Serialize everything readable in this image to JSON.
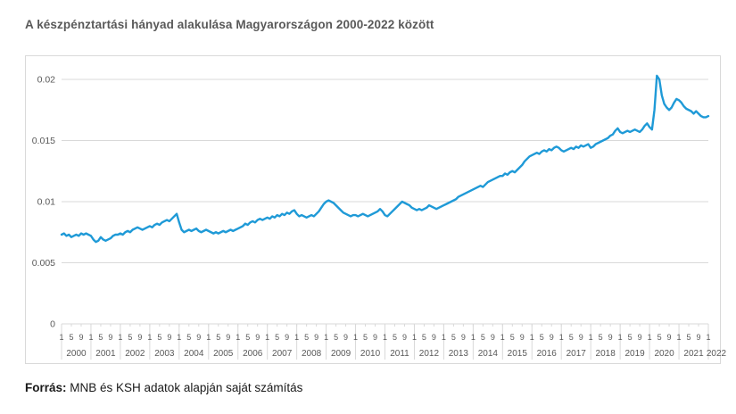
{
  "page": {
    "title": "A készpénztartási hányad alakulása Magyarországon 2000-2022 között",
    "source_label": "Forrás:",
    "source_text": " MNB és KSH adatok alapján saját számítás"
  },
  "colors": {
    "line": "#1f9ad7",
    "grid": "#d9d9d9",
    "axis_text": "#595959",
    "title_text": "#595959",
    "box_border": "#d9d9d9"
  },
  "chart_data": {
    "type": "line",
    "title": "A készpénztartási hányad alakulása Magyarországon 2000-2022 között",
    "frequency": "monthly",
    "x_start": "2000-01",
    "x_end": "2022-01",
    "years": [
      2000,
      2001,
      2002,
      2003,
      2004,
      2005,
      2006,
      2007,
      2008,
      2009,
      2010,
      2011,
      2012,
      2013,
      2014,
      2015,
      2016,
      2017,
      2018,
      2019,
      2020,
      2021,
      2022
    ],
    "month_tick_labels": [
      "1",
      "5",
      "9"
    ],
    "y_ticks": [
      0,
      0.005,
      0.01,
      0.015,
      0.02
    ],
    "y_tick_labels": [
      "0",
      "0.005",
      "0.01",
      "0.015",
      "0.02"
    ],
    "ylim": [
      0,
      0.021
    ],
    "grid": "horizontal",
    "legend": "none",
    "series": [
      {
        "name": "készpénztartási hányad",
        "values": [
          0.0073,
          0.0074,
          0.0072,
          0.0073,
          0.0071,
          0.0072,
          0.0073,
          0.0072,
          0.0074,
          0.0073,
          0.0074,
          0.0073,
          0.0072,
          0.0069,
          0.0067,
          0.0068,
          0.0071,
          0.0069,
          0.0068,
          0.0069,
          0.007,
          0.0072,
          0.0073,
          0.0073,
          0.0074,
          0.0073,
          0.0075,
          0.0076,
          0.0075,
          0.0077,
          0.0078,
          0.0079,
          0.0078,
          0.0077,
          0.0078,
          0.0079,
          0.008,
          0.0079,
          0.0081,
          0.0082,
          0.0081,
          0.0083,
          0.0084,
          0.0085,
          0.0084,
          0.0086,
          0.0088,
          0.009,
          0.0083,
          0.0077,
          0.0075,
          0.0076,
          0.0077,
          0.0076,
          0.0077,
          0.0078,
          0.0076,
          0.0075,
          0.0076,
          0.0077,
          0.0076,
          0.0075,
          0.0074,
          0.0075,
          0.0074,
          0.0075,
          0.0076,
          0.0075,
          0.0076,
          0.0077,
          0.0076,
          0.0077,
          0.0078,
          0.0079,
          0.008,
          0.0082,
          0.0081,
          0.0083,
          0.0084,
          0.0083,
          0.0085,
          0.0086,
          0.0085,
          0.0086,
          0.0087,
          0.0086,
          0.0088,
          0.0087,
          0.0089,
          0.0088,
          0.009,
          0.0089,
          0.0091,
          0.009,
          0.0092,
          0.0093,
          0.009,
          0.0088,
          0.0089,
          0.0088,
          0.0087,
          0.0088,
          0.0089,
          0.0088,
          0.009,
          0.0092,
          0.0095,
          0.0098,
          0.01,
          0.0101,
          0.01,
          0.0099,
          0.0097,
          0.0095,
          0.0093,
          0.0091,
          0.009,
          0.0089,
          0.0088,
          0.0089,
          0.0089,
          0.0088,
          0.0089,
          0.009,
          0.0089,
          0.0088,
          0.0089,
          0.009,
          0.0091,
          0.0092,
          0.0094,
          0.0092,
          0.0089,
          0.0088,
          0.009,
          0.0092,
          0.0094,
          0.0096,
          0.0098,
          0.01,
          0.0099,
          0.0098,
          0.0097,
          0.0095,
          0.0094,
          0.0093,
          0.0094,
          0.0093,
          0.0094,
          0.0095,
          0.0097,
          0.0096,
          0.0095,
          0.0094,
          0.0095,
          0.0096,
          0.0097,
          0.0098,
          0.0099,
          0.01,
          0.0101,
          0.0102,
          0.0104,
          0.0105,
          0.0106,
          0.0107,
          0.0108,
          0.0109,
          0.011,
          0.0111,
          0.0112,
          0.0113,
          0.0112,
          0.0114,
          0.0116,
          0.0117,
          0.0118,
          0.0119,
          0.012,
          0.0121,
          0.0121,
          0.0123,
          0.0122,
          0.0124,
          0.0125,
          0.0124,
          0.0126,
          0.0128,
          0.013,
          0.0133,
          0.0135,
          0.0137,
          0.0138,
          0.0139,
          0.014,
          0.0139,
          0.0141,
          0.0142,
          0.0141,
          0.0143,
          0.0142,
          0.0144,
          0.0145,
          0.0144,
          0.0142,
          0.0141,
          0.0142,
          0.0143,
          0.0144,
          0.0143,
          0.0145,
          0.0144,
          0.0146,
          0.0145,
          0.0146,
          0.0147,
          0.0144,
          0.0145,
          0.0147,
          0.0148,
          0.0149,
          0.015,
          0.0151,
          0.0152,
          0.0154,
          0.0155,
          0.0158,
          0.016,
          0.0157,
          0.0156,
          0.0157,
          0.0158,
          0.0157,
          0.0158,
          0.0159,
          0.0158,
          0.0157,
          0.0159,
          0.0162,
          0.0164,
          0.0161,
          0.0159,
          0.0175,
          0.0203,
          0.02,
          0.0187,
          0.018,
          0.0177,
          0.0175,
          0.0177,
          0.0181,
          0.0184,
          0.0183,
          0.0181,
          0.0178,
          0.0176,
          0.0175,
          0.0174,
          0.0172,
          0.0174,
          0.0172,
          0.017,
          0.0169,
          0.0169,
          0.017
        ]
      }
    ]
  }
}
